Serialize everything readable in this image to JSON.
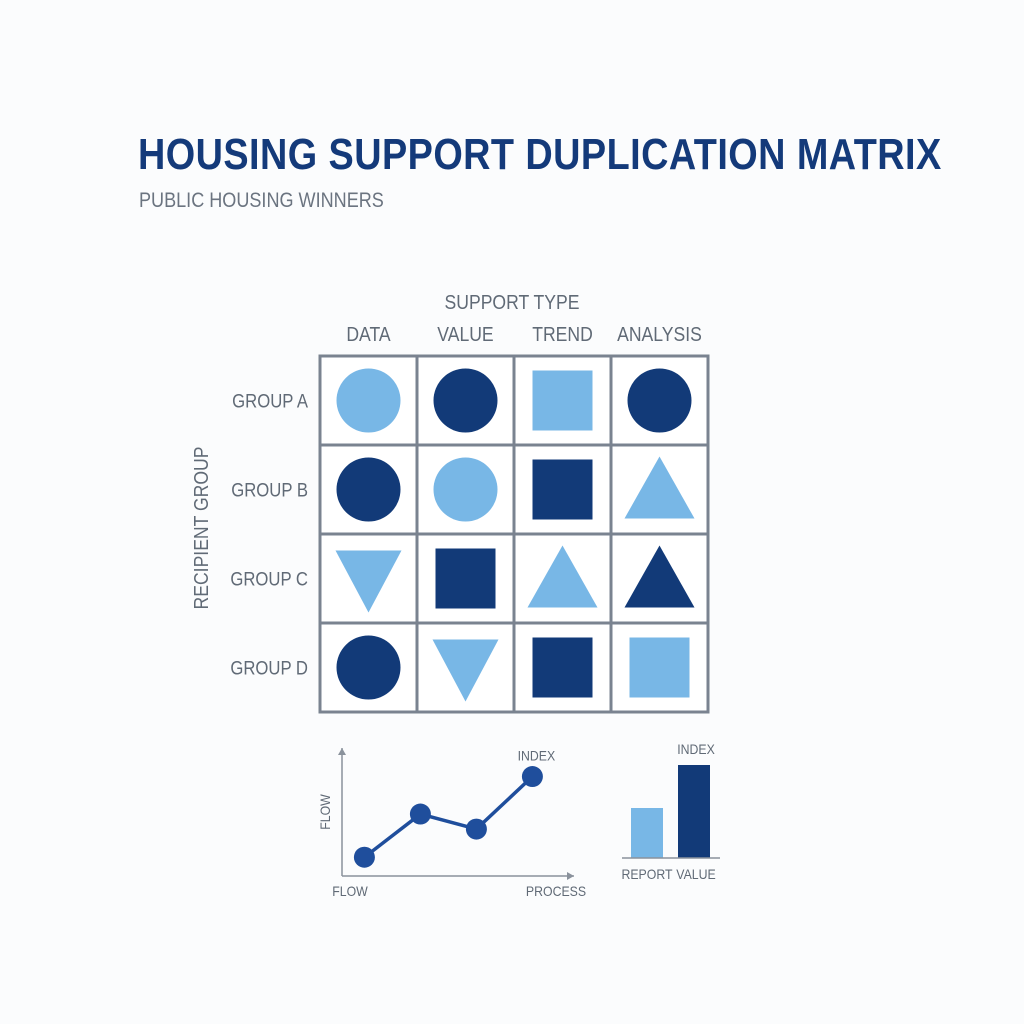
{
  "colors": {
    "light": "#78b7e6",
    "dark": "#123a78",
    "grid": "#7a8390",
    "text": "#606a76",
    "title": "#143a7a",
    "line": "#1f4e9c"
  },
  "chart_data": [
    {
      "type": "table",
      "title": "HOUSING SUPPORT DUPLICATION MATRIX",
      "subtitle": "PUBLIC HOUSING WINNERS",
      "column_axis_label": "SUPPORT TYPE",
      "row_axis_label": "RECIPIENT GROUP",
      "columns": [
        "DATA",
        "VALUE",
        "TREND",
        "ANALYSIS"
      ],
      "rows": [
        "GROUP A",
        "GROUP B",
        "GROUP C",
        "GROUP D"
      ],
      "cells": [
        [
          {
            "shape": "circle",
            "tone": "light"
          },
          {
            "shape": "circle",
            "tone": "dark"
          },
          {
            "shape": "square",
            "tone": "light"
          },
          {
            "shape": "circle",
            "tone": "dark"
          }
        ],
        [
          {
            "shape": "circle",
            "tone": "dark"
          },
          {
            "shape": "circle",
            "tone": "light"
          },
          {
            "shape": "square",
            "tone": "dark"
          },
          {
            "shape": "triangle-up",
            "tone": "light"
          }
        ],
        [
          {
            "shape": "triangle-down",
            "tone": "light"
          },
          {
            "shape": "square",
            "tone": "dark"
          },
          {
            "shape": "triangle-up",
            "tone": "light"
          },
          {
            "shape": "triangle-up",
            "tone": "dark"
          }
        ],
        [
          {
            "shape": "circle",
            "tone": "dark"
          },
          {
            "shape": "triangle-down",
            "tone": "light"
          },
          {
            "shape": "square",
            "tone": "dark"
          },
          {
            "shape": "square",
            "tone": "light"
          }
        ]
      ]
    },
    {
      "type": "line",
      "xlabel_start": "FLOW",
      "xlabel_end": "PROCESS",
      "ylabel": "FLOW",
      "annotation": "INDEX",
      "x": [
        1,
        2,
        3,
        4
      ],
      "y": [
        1,
        3.3,
        2.5,
        5.3
      ],
      "xlim": [
        0.6,
        4.6
      ],
      "ylim": [
        0,
        6.5
      ]
    },
    {
      "type": "bar",
      "categories": [
        "REPORT",
        "VALUE"
      ],
      "values": [
        5,
        9.3
      ],
      "annotation": "INDEX",
      "ylim": [
        0,
        10
      ]
    }
  ]
}
